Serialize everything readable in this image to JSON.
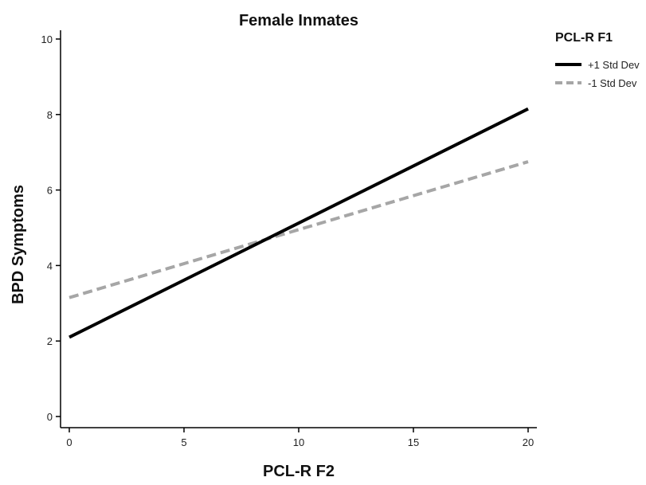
{
  "chart_data": {
    "type": "line",
    "title": "Female Inmates",
    "xlabel": "PCL-R F2",
    "ylabel": "BPD Symptoms",
    "xlim": [
      0,
      20
    ],
    "ylim": [
      0,
      10
    ],
    "x_ticks": [
      0,
      5,
      10,
      15,
      20
    ],
    "y_ticks": [
      0,
      2,
      4,
      6,
      8,
      10
    ],
    "grid": false,
    "legend_title": "PCL-R F1",
    "legend_position": "top-right, outside plot",
    "series": [
      {
        "name": "+1 Std Dev",
        "x": [
          0,
          20
        ],
        "y": [
          2.1,
          8.15
        ],
        "color": "#000000",
        "style": "solid"
      },
      {
        "name": "-1 Std Dev",
        "x": [
          0,
          20
        ],
        "y": [
          3.15,
          6.75
        ],
        "color": "#a6a6a6",
        "style": "dashed"
      }
    ]
  }
}
